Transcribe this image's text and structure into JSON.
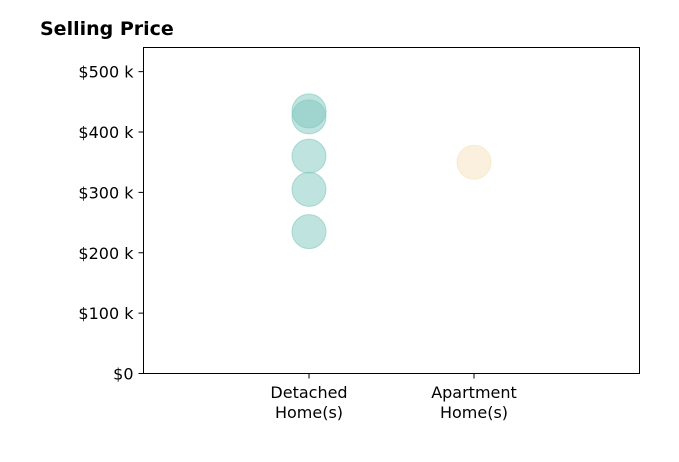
{
  "chart_data": {
    "type": "scatter",
    "title": "Selling Price",
    "xlabel": "",
    "ylabel": "",
    "categories": [
      [
        "Detached",
        "Home(s)"
      ],
      [
        "Apartment",
        "Home(s)"
      ]
    ],
    "ylim": [
      0,
      540000
    ],
    "yticks": [
      0,
      100000,
      200000,
      300000,
      400000,
      500000
    ],
    "ytick_labels": [
      "$0",
      "$100 k",
      "$200 k",
      "$300 k",
      "$400 k",
      "$500 k"
    ],
    "grid": false,
    "series": [
      {
        "category": 0,
        "values": [
          435000,
          425000,
          360000,
          305000,
          235000
        ],
        "color": "#7fc8bd"
      },
      {
        "category": 1,
        "values": [
          350000
        ],
        "color": "#f5e2bb"
      }
    ]
  }
}
